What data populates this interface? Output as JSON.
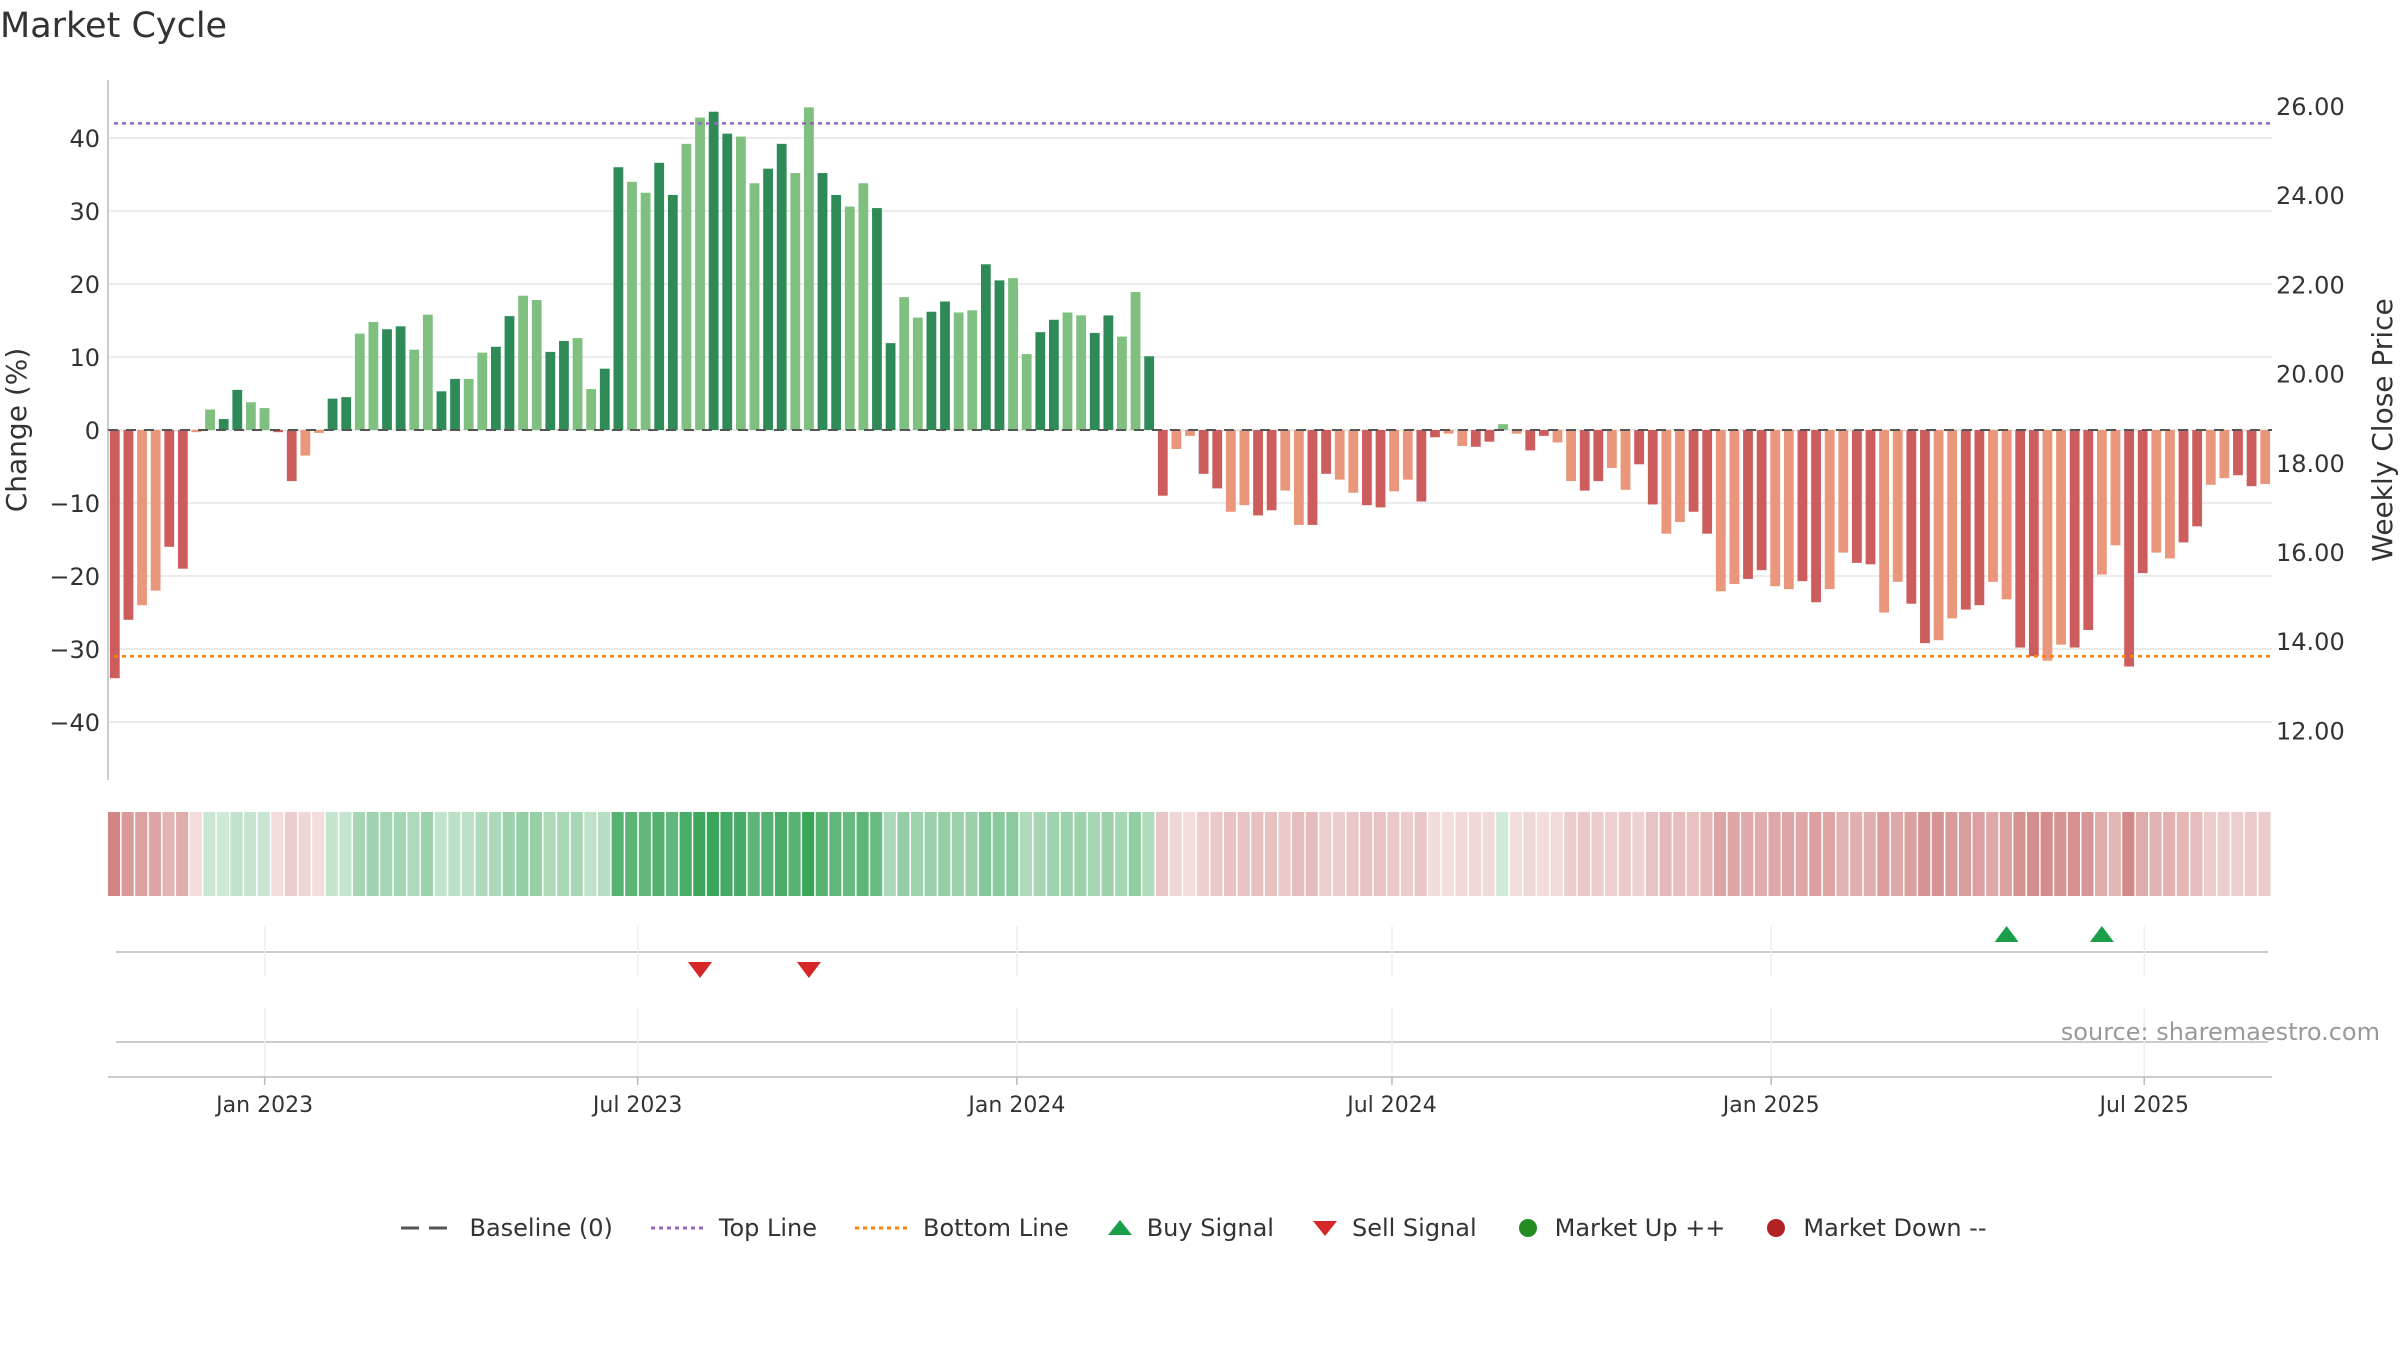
{
  "chart_data": {
    "type": "bar",
    "title": "Market Cycle",
    "source": "source: sharemaestro.com",
    "ylabel_left": "Change (%)",
    "ylabel_right": "Weekly Close Price",
    "y_left_ticks": [
      "40",
      "30",
      "20",
      "10",
      "0",
      "−10",
      "−20",
      "−30",
      "−40"
    ],
    "y_right_ticks": [
      "26.00",
      "24.00",
      "22.00",
      "20.00",
      "18.00",
      "16.00",
      "14.00",
      "12.00"
    ],
    "x_ticks": [
      "Jan 2023",
      "Jul 2023",
      "Jan 2024",
      "Jul 2024",
      "Jan 2025",
      "Jul 2025"
    ],
    "ylim_left": [
      -48,
      48
    ],
    "top_line": 42,
    "bottom_line": -31,
    "baseline": 0,
    "x_start": "2022-10-17",
    "x_end": "2025-09-01",
    "values": [
      -34,
      -26,
      -24,
      -22,
      -16,
      -19,
      -0.3,
      2.8,
      1.5,
      5.5,
      3.8,
      3,
      -0.3,
      -7,
      -3.5,
      -0.4,
      4.3,
      4.5,
      13.2,
      14.8,
      13.8,
      14.2,
      11,
      15.8,
      5.3,
      7,
      7,
      10.6,
      11.4,
      15.6,
      18.4,
      17.8,
      10.7,
      12.2,
      12.6,
      5.6,
      8.4,
      36,
      34,
      32.5,
      36.6,
      32.2,
      39.2,
      42.8,
      43.6,
      40.6,
      40.2,
      33.8,
      35.8,
      39.2,
      35.2,
      44.2,
      35.2,
      32.2,
      30.6,
      33.8,
      30.4,
      11.9,
      18.2,
      15.4,
      16.2,
      17.6,
      16.1,
      16.4,
      22.7,
      20.5,
      20.8,
      10.4,
      13.4,
      15.1,
      16.1,
      15.7,
      13.3,
      15.7,
      12.8,
      18.9,
      10.1,
      -9,
      -2.6,
      -0.8,
      -6,
      -8,
      -11.2,
      -10.3,
      -11.7,
      -11,
      -8.3,
      -13,
      -13,
      -6,
      -6.8,
      -8.6,
      -10.3,
      -10.6,
      -8.4,
      -6.8,
      -9.8,
      -1,
      -0.5,
      -2.2,
      -2.3,
      -1.6,
      0.8,
      -0.5,
      -2.8,
      -0.8,
      -1.7,
      -7,
      -8.3,
      -7,
      -5.2,
      -8.2,
      -4.7,
      -10.2,
      -14.2,
      -12.6,
      -11.2,
      -14.2,
      -22.1,
      -21.1,
      -20.4,
      -19.2,
      -21.4,
      -21.8,
      -20.7,
      -23.6,
      -21.8,
      -16.8,
      -18.2,
      -18.4,
      -25,
      -20.8,
      -23.8,
      -29.2,
      -28.8,
      -25.8,
      -24.6,
      -24,
      -20.8,
      -23.2,
      -29.8,
      -31,
      -31.6,
      -29.4,
      -29.8,
      -27.4,
      -19.8,
      -15.8,
      -32.4,
      -19.6,
      -16.8,
      -17.6,
      -15.4,
      -13.2,
      -7.5,
      -6.6,
      -6.2,
      -7.7,
      -7.4
    ],
    "buy_signals": [
      139,
      146
    ],
    "sell_signals": [
      43,
      51
    ],
    "colors": {
      "up_strong": "#2e8b57",
      "up_weak": "#7fbf7f",
      "down_strong": "#cd5c5c",
      "down_weak": "#e9967a",
      "top_line": "#9467bd",
      "bottom_line": "#ff7f0e",
      "baseline": "#555555",
      "buy": "#1a9e4a",
      "sell": "#d62728",
      "market_up": "#228b22",
      "market_down": "#b22222",
      "grid": "#e6e6e6"
    },
    "legend": [
      {
        "key": "baseline",
        "label": "Baseline (0)"
      },
      {
        "key": "top",
        "label": "Top Line"
      },
      {
        "key": "bottom",
        "label": "Bottom Line"
      },
      {
        "key": "buy",
        "label": "Buy Signal"
      },
      {
        "key": "sell",
        "label": "Sell Signal"
      },
      {
        "key": "mup",
        "label": "Market Up ++"
      },
      {
        "key": "mdown",
        "label": "Market Down --"
      }
    ]
  }
}
